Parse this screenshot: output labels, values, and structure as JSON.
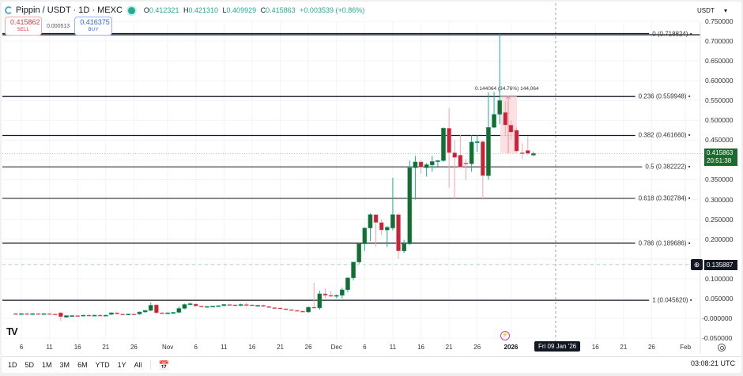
{
  "header": {
    "symbol": "Pippin / USDT · 1D · MEXC",
    "ohlc": {
      "o_label": "O",
      "o": "0.412321",
      "h_label": "H",
      "h": "0.421310",
      "l_label": "L",
      "l": "0.409929",
      "c_label": "C",
      "c": "0.415863",
      "change": "+0.003539 (+0.86%)"
    }
  },
  "trade": {
    "sell_price": "0.415862",
    "sell_label": "SELL",
    "spread": "0.000513",
    "buy_price": "0.416375",
    "buy_label": "BUY"
  },
  "currency_selector": {
    "value": "USDT",
    "chevron": "▾"
  },
  "price_tag": {
    "price": "0.415863",
    "countdown": "20:51:38"
  },
  "low_tag": {
    "price": "0.135887",
    "icon": "⊕"
  },
  "measure_label": "0.144064 (34.76%) 144,064",
  "crosshair_date": "Fri 09 Jan '26",
  "clock": "03:08:21 UTC",
  "tv_logo": "TV",
  "bottom_bar": {
    "ranges": [
      "1D",
      "5D",
      "1M",
      "3M",
      "6M",
      "YTD",
      "1Y",
      "All"
    ]
  },
  "colors": {
    "up": "#1b6b2c",
    "up_wick": "#22ab94",
    "down": "#c8223a",
    "down_wick": "#f7a5ab",
    "measure_fill": "#fcdde0",
    "measure_line": "#f48c95"
  },
  "chart_data": {
    "type": "candlestick",
    "title": "Pippin / USDT · 1D · MEXC",
    "ylim": [
      -0.05,
      0.75
    ],
    "yticks": [
      "0.750000",
      "0.700000",
      "0.650000",
      "0.600000",
      "0.550000",
      "0.500000",
      "0.450000",
      "0.400000",
      "0.350000",
      "0.300000",
      "0.250000",
      "0.200000",
      "0.150000",
      "0.100000",
      "0.050000",
      "-0.000000",
      "-0.050000"
    ],
    "xticks": [
      {
        "label": "6",
        "day": 0
      },
      {
        "label": "11",
        "day": 5
      },
      {
        "label": "16",
        "day": 10
      },
      {
        "label": "21",
        "day": 15
      },
      {
        "label": "26",
        "day": 20
      },
      {
        "label": "Nov",
        "day": 26
      },
      {
        "label": "6",
        "day": 31
      },
      {
        "label": "11",
        "day": 36
      },
      {
        "label": "16",
        "day": 41
      },
      {
        "label": "21",
        "day": 46
      },
      {
        "label": "26",
        "day": 51
      },
      {
        "label": "Dec",
        "day": 56
      },
      {
        "label": "6",
        "day": 61
      },
      {
        "label": "11",
        "day": 66
      },
      {
        "label": "16",
        "day": 71
      },
      {
        "label": "21",
        "day": 76
      },
      {
        "label": "26",
        "day": 81
      },
      {
        "label": "2026",
        "day": 87,
        "bold": true
      },
      {
        "label": "16",
        "day": 102
      },
      {
        "label": "21",
        "day": 107
      },
      {
        "label": "26",
        "day": 112
      },
      {
        "label": "Feb",
        "day": 118
      }
    ],
    "fib_levels": [
      {
        "ratio": "0",
        "value": 0.718824,
        "label": "0 (0.718824)"
      },
      {
        "ratio": "0.236",
        "value": 0.559948,
        "label": "0.236 (0.559948)"
      },
      {
        "ratio": "0.382",
        "value": 0.46166,
        "label": "0.382 (0.461660)"
      },
      {
        "ratio": "0.5",
        "value": 0.382222,
        "label": "0.5 (0.382222)"
      },
      {
        "ratio": "0.618",
        "value": 0.302784,
        "label": "0.618 (0.302784)"
      },
      {
        "ratio": "0.786",
        "value": 0.189686,
        "label": "0.786 (0.189686)"
      },
      {
        "ratio": "1",
        "value": 0.04562,
        "label": "1 (0.045620)"
      }
    ],
    "current_price": 0.415863,
    "low_marker": 0.135887,
    "measure": {
      "from": 0.415863,
      "to": 0.559948,
      "change": 0.144064,
      "pct": "34.76%"
    },
    "candles_start_day": -1,
    "candles": [
      [
        0.012,
        0.014,
        0.009,
        0.011
      ],
      [
        0.011,
        0.013,
        0.009,
        0.012
      ],
      [
        0.012,
        0.014,
        0.01,
        0.011
      ],
      [
        0.011,
        0.013,
        0.009,
        0.012
      ],
      [
        0.012,
        0.013,
        0.01,
        0.011
      ],
      [
        0.011,
        0.013,
        0.009,
        0.012
      ],
      [
        0.012,
        0.013,
        0.01,
        0.011
      ],
      [
        0.011,
        0.012,
        0.009,
        0.01
      ],
      [
        0.014,
        0.016,
        -0.006,
        0.004
      ],
      [
        0.003,
        0.008,
        0.001,
        0.007
      ],
      [
        0.006,
        0.008,
        0.004,
        0.007
      ],
      [
        0.007,
        0.009,
        0.005,
        0.006
      ],
      [
        0.007,
        0.009,
        0.005,
        0.008
      ],
      [
        0.008,
        0.01,
        0.006,
        0.007
      ],
      [
        0.007,
        0.009,
        0.005,
        0.008
      ],
      [
        0.008,
        0.01,
        0.006,
        0.007
      ],
      [
        0.007,
        0.009,
        0.005,
        0.008
      ],
      [
        0.01,
        0.015,
        0.008,
        0.014
      ],
      [
        0.014,
        0.017,
        0.01,
        0.011
      ],
      [
        0.011,
        0.013,
        0.009,
        0.01
      ],
      [
        0.01,
        0.012,
        0.008,
        0.011
      ],
      [
        0.011,
        0.013,
        0.009,
        0.01
      ],
      [
        0.011,
        0.017,
        0.009,
        0.016
      ],
      [
        0.016,
        0.021,
        0.014,
        0.02
      ],
      [
        0.02,
        0.04,
        0.018,
        0.033
      ],
      [
        0.034,
        0.036,
        0.01,
        0.014
      ],
      [
        0.014,
        0.016,
        0.012,
        0.013
      ],
      [
        0.013,
        0.015,
        0.011,
        0.014
      ],
      [
        0.014,
        0.016,
        0.012,
        0.015
      ],
      [
        0.015,
        0.03,
        0.013,
        0.025
      ],
      [
        0.025,
        0.037,
        0.023,
        0.035
      ],
      [
        0.035,
        0.04,
        0.033,
        0.037
      ],
      [
        0.036,
        0.038,
        0.03,
        0.031
      ],
      [
        0.031,
        0.033,
        0.029,
        0.03
      ],
      [
        0.029,
        0.031,
        0.027,
        0.03
      ],
      [
        0.03,
        0.032,
        0.028,
        0.031
      ],
      [
        0.031,
        0.033,
        0.029,
        0.032
      ],
      [
        0.032,
        0.036,
        0.03,
        0.035
      ],
      [
        0.035,
        0.037,
        0.033,
        0.034
      ],
      [
        0.034,
        0.036,
        0.032,
        0.033
      ],
      [
        0.033,
        0.037,
        0.031,
        0.035
      ],
      [
        0.035,
        0.04,
        0.029,
        0.034
      ],
      [
        0.034,
        0.036,
        0.031,
        0.032
      ],
      [
        0.032,
        0.034,
        0.03,
        0.033
      ],
      [
        0.033,
        0.035,
        0.029,
        0.03
      ],
      [
        0.03,
        0.031,
        0.026,
        0.027
      ],
      [
        0.027,
        0.029,
        0.025,
        0.026
      ],
      [
        0.026,
        0.028,
        0.023,
        0.024
      ],
      [
        0.024,
        0.026,
        0.021,
        0.022
      ],
      [
        0.022,
        0.024,
        0.019,
        0.02
      ],
      [
        0.02,
        0.022,
        0.017,
        0.018
      ],
      [
        0.018,
        0.02,
        0.015,
        0.016
      ],
      [
        0.016,
        0.03,
        0.014,
        0.028
      ],
      [
        0.028,
        0.09,
        0.025,
        0.026
      ],
      [
        0.026,
        0.07,
        0.022,
        0.062
      ],
      [
        0.062,
        0.076,
        0.05,
        0.058
      ],
      [
        0.058,
        0.069,
        0.054,
        0.056
      ],
      [
        0.056,
        0.06,
        0.051,
        0.058
      ],
      [
        0.058,
        0.077,
        0.05,
        0.072
      ],
      [
        0.072,
        0.104,
        0.066,
        0.102
      ],
      [
        0.102,
        0.14,
        0.096,
        0.142
      ],
      [
        0.142,
        0.19,
        0.138,
        0.188
      ],
      [
        0.188,
        0.23,
        0.17,
        0.228
      ],
      [
        0.228,
        0.265,
        0.195,
        0.262
      ],
      [
        0.262,
        0.25,
        0.18,
        0.242
      ],
      [
        0.242,
        0.25,
        0.21,
        0.223
      ],
      [
        0.223,
        0.233,
        0.18,
        0.23
      ],
      [
        0.228,
        0.355,
        0.222,
        0.262
      ],
      [
        0.262,
        0.266,
        0.15,
        0.17
      ],
      [
        0.17,
        0.198,
        0.165,
        0.188
      ],
      [
        0.188,
        0.398,
        0.185,
        0.38
      ],
      [
        0.38,
        0.41,
        0.3,
        0.395
      ],
      [
        0.395,
        0.4,
        0.365,
        0.382
      ],
      [
        0.38,
        0.392,
        0.358,
        0.388
      ],
      [
        0.387,
        0.41,
        0.37,
        0.396
      ],
      [
        0.396,
        0.4,
        0.38,
        0.398
      ],
      [
        0.398,
        0.482,
        0.395,
        0.48
      ],
      [
        0.48,
        0.53,
        0.33,
        0.418
      ],
      [
        0.418,
        0.45,
        0.302,
        0.406
      ],
      [
        0.412,
        0.463,
        0.395,
        0.382
      ],
      [
        0.392,
        0.402,
        0.35,
        0.39
      ],
      [
        0.39,
        0.462,
        0.37,
        0.445
      ],
      [
        0.445,
        0.462,
        0.42,
        0.446
      ],
      [
        0.446,
        0.45,
        0.3,
        0.36
      ],
      [
        0.36,
        0.57,
        0.35,
        0.482
      ],
      [
        0.482,
        0.572,
        0.48,
        0.515
      ],
      [
        0.515,
        0.718,
        0.49,
        0.55
      ],
      [
        0.52,
        0.548,
        0.46,
        0.488
      ],
      [
        0.488,
        0.5,
        0.45,
        0.47
      ],
      [
        0.475,
        0.482,
        0.418,
        0.422
      ],
      [
        0.418,
        0.442,
        0.403,
        0.416
      ],
      [
        0.424,
        0.46,
        0.412,
        0.416
      ],
      [
        0.412,
        0.421,
        0.41,
        0.416
      ]
    ]
  }
}
